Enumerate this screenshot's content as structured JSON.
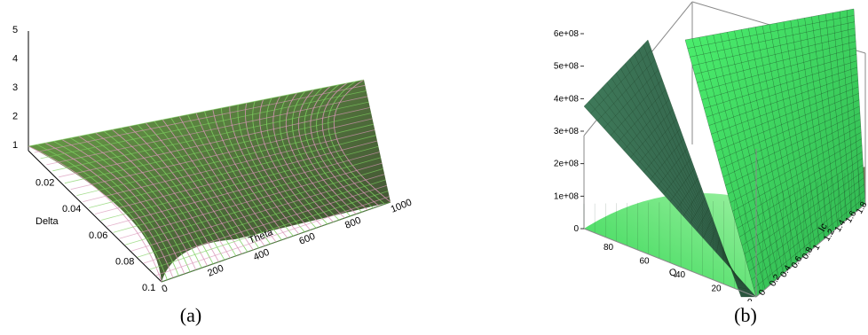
{
  "captions": [
    "(a)",
    "(b)"
  ],
  "colors": {
    "surface_a_fill": "#4e6b3a",
    "surface_a_grid": "#d996b8",
    "surface_a_light": "#7fd060",
    "surface_b_light": "#3edc63",
    "surface_b_dark": "#356a52",
    "grid_b": "#1a3a22",
    "box": "#8a8a8a"
  },
  "chart_data": [
    {
      "type": "surface",
      "panel": "(a)",
      "xlabel": "Delta",
      "ylabel": "Theta",
      "zlabel": "",
      "x_ticks": [
        "0.02",
        "0.04",
        "0.06",
        "0.08",
        "0.1"
      ],
      "y_ticks": [
        "0",
        "200",
        "400",
        "600",
        "800",
        "1000"
      ],
      "z_ticks": [
        "1",
        "2",
        "3",
        "4",
        "5"
      ]
    },
    {
      "type": "surface",
      "panel": "(b)",
      "xlabel": "Q",
      "ylabel": "Ic",
      "zlabel": "",
      "x_ticks": [
        "80",
        "60",
        "40",
        "20",
        "0"
      ],
      "y_ticks": [
        "0",
        "0.2",
        "0.4",
        "0.6",
        "0.8",
        "1",
        "1.2",
        "1.4",
        "1.6",
        "1.8"
      ],
      "z_ticks": [
        "0",
        "1e+08",
        "2e+08",
        "3e+08",
        "4e+08",
        "5e+08",
        "6e+08"
      ]
    }
  ]
}
